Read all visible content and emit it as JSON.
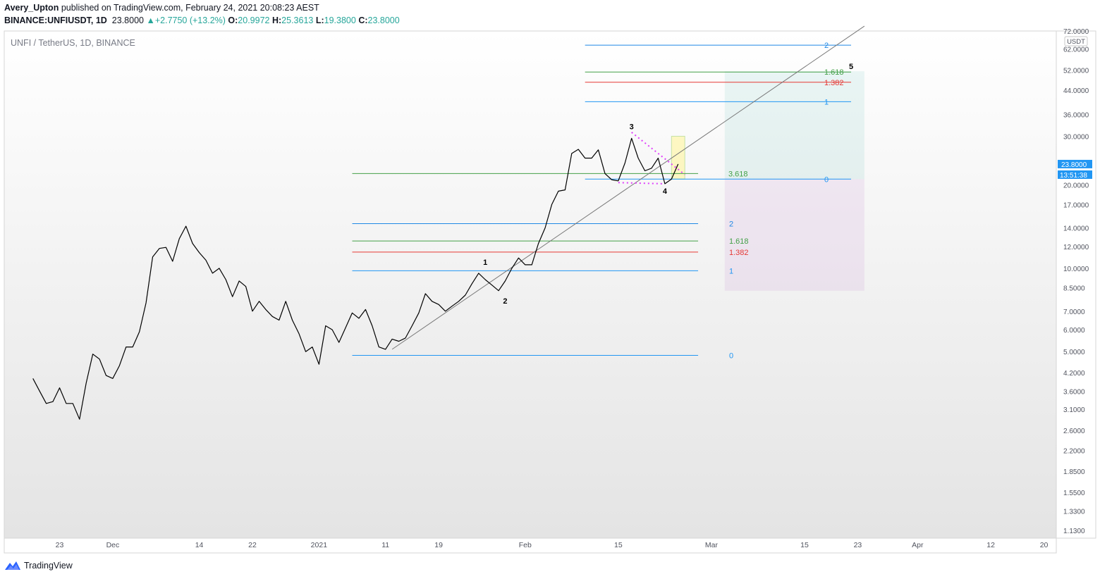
{
  "header": {
    "author": "Avery_Upton",
    "published_text": "published on TradingView.com, February 24, 2021 20:08:23 AEST",
    "symbol_line": "BINANCE:UNFIUSDT, 1D",
    "last_price": "23.8000",
    "change": "+2.7750 (+13.2%)",
    "ohlc": [
      {
        "k": "O:",
        "v": "20.9972"
      },
      {
        "k": "H:",
        "v": "25.3613"
      },
      {
        "k": "L:",
        "v": "19.3800"
      },
      {
        "k": "C:",
        "v": "23.8000"
      }
    ]
  },
  "chart_title": "UNFI / TetherUS, 1D, BINANCE",
  "footer": {
    "brand": "TradingView"
  },
  "chart_data": {
    "type": "line",
    "y_scale": "log",
    "ylim": [
      1.06,
      72
    ],
    "y_currency": "USDT",
    "y_ticks": [
      "72.0000",
      "62.0000",
      "52.0000",
      "44.0000",
      "36.0000",
      "30.0000",
      "20.0000",
      "17.0000",
      "14.0000",
      "12.0000",
      "10.0000",
      "8.5000",
      "7.0000",
      "6.0000",
      "5.0000",
      "4.2000",
      "3.6000",
      "3.1000",
      "2.6000",
      "2.2000",
      "1.8500",
      "1.5500",
      "1.3300",
      "1.1300"
    ],
    "x_ticks": [
      {
        "label": "23",
        "date": "2020-11-23"
      },
      {
        "label": "Dec",
        "date": "2020-12-01"
      },
      {
        "label": "14",
        "date": "2020-12-14"
      },
      {
        "label": "22",
        "date": "2020-12-22"
      },
      {
        "label": "2021",
        "date": "2021-01-01"
      },
      {
        "label": "11",
        "date": "2021-01-11"
      },
      {
        "label": "19",
        "date": "2021-01-19"
      },
      {
        "label": "Feb",
        "date": "2021-02-01"
      },
      {
        "label": "15",
        "date": "2021-02-15"
      },
      {
        "label": "Mar",
        "date": "2021-03-01"
      },
      {
        "label": "15",
        "date": "2021-03-15"
      },
      {
        "label": "23",
        "date": "2021-03-23"
      },
      {
        "label": "Apr",
        "date": "2021-04-01"
      },
      {
        "label": "12",
        "date": "2021-04-12"
      },
      {
        "label": "20",
        "date": "2021-04-20"
      }
    ],
    "xlim": [
      "2020-11-15",
      "2021-04-21"
    ],
    "series": [
      {
        "color": "#000000",
        "x": [
          "2020-11-19",
          "2020-11-20",
          "2020-11-21",
          "2020-11-22",
          "2020-11-23",
          "2020-11-24",
          "2020-11-25",
          "2020-11-26",
          "2020-11-27",
          "2020-11-28",
          "2020-11-29",
          "2020-11-30",
          "2020-12-01",
          "2020-12-02",
          "2020-12-03",
          "2020-12-04",
          "2020-12-05",
          "2020-12-06",
          "2020-12-07",
          "2020-12-08",
          "2020-12-09",
          "2020-12-10",
          "2020-12-11",
          "2020-12-12",
          "2020-12-13",
          "2020-12-14",
          "2020-12-15",
          "2020-12-16",
          "2020-12-17",
          "2020-12-18",
          "2020-12-19",
          "2020-12-20",
          "2020-12-21",
          "2020-12-22",
          "2020-12-23",
          "2020-12-24",
          "2020-12-25",
          "2020-12-26",
          "2020-12-27",
          "2020-12-28",
          "2020-12-29",
          "2020-12-30",
          "2020-12-31",
          "2021-01-01",
          "2021-01-02",
          "2021-01-03",
          "2021-01-04",
          "2021-01-05",
          "2021-01-06",
          "2021-01-07",
          "2021-01-08",
          "2021-01-09",
          "2021-01-10",
          "2021-01-11",
          "2021-01-12",
          "2021-01-13",
          "2021-01-14",
          "2021-01-15",
          "2021-01-16",
          "2021-01-17",
          "2021-01-18",
          "2021-01-19",
          "2021-01-20",
          "2021-01-21",
          "2021-01-22",
          "2021-01-23",
          "2021-01-24",
          "2021-01-25",
          "2021-01-26",
          "2021-01-27",
          "2021-01-28",
          "2021-01-29",
          "2021-01-30",
          "2021-01-31",
          "2021-02-01",
          "2021-02-02",
          "2021-02-03",
          "2021-02-04",
          "2021-02-05",
          "2021-02-06",
          "2021-02-07",
          "2021-02-08",
          "2021-02-09",
          "2021-02-10",
          "2021-02-11",
          "2021-02-12",
          "2021-02-13",
          "2021-02-14",
          "2021-02-15",
          "2021-02-16",
          "2021-02-17",
          "2021-02-18",
          "2021-02-19",
          "2021-02-20",
          "2021-02-21",
          "2021-02-22",
          "2021-02-23",
          "2021-02-24"
        ],
        "y": [
          4.0,
          3.6,
          3.25,
          3.3,
          3.7,
          3.25,
          3.25,
          2.85,
          3.85,
          4.9,
          4.7,
          4.1,
          4.0,
          4.45,
          5.2,
          5.2,
          5.9,
          7.5,
          11.0,
          11.8,
          11.9,
          10.6,
          12.8,
          14.2,
          12.3,
          11.4,
          10.7,
          9.6,
          10.0,
          9.1,
          7.9,
          9.0,
          8.6,
          7.0,
          7.6,
          7.1,
          6.7,
          6.5,
          7.6,
          6.5,
          5.8,
          5.0,
          5.2,
          4.5,
          6.2,
          6.0,
          5.4,
          6.1,
          6.9,
          6.6,
          7.1,
          6.2,
          5.2,
          5.1,
          5.55,
          5.45,
          5.6,
          6.2,
          6.9,
          8.1,
          7.6,
          7.4,
          7.0,
          7.3,
          7.6,
          8.0,
          8.8,
          9.6,
          9.1,
          8.7,
          8.3,
          9.0,
          10.0,
          10.9,
          10.3,
          10.3,
          12.3,
          14.0,
          17.0,
          19.0,
          19.2,
          26.0,
          26.9,
          25.0,
          25.0,
          26.8,
          22.0,
          20.9,
          20.7,
          24.0,
          29.5,
          25.0,
          22.5,
          23.0,
          25.0,
          20.2,
          21.0,
          23.8
        ]
      }
    ],
    "last_value_label": "23.8000",
    "countdown_label": "13:51:38",
    "annotations": {
      "waves": [
        {
          "label": "1",
          "date": "2021-01-26",
          "price": 10.3
        },
        {
          "label": "2",
          "date": "2021-01-29",
          "price": 7.45
        },
        {
          "label": "3",
          "date": "2021-02-17",
          "price": 31.8
        },
        {
          "label": "4",
          "date": "2021-02-22",
          "price": 18.6
        },
        {
          "label": "5",
          "date": "2021-03-22",
          "price": 52.5
        }
      ],
      "fib_lower": [
        {
          "label": "2",
          "price": 14.5,
          "color": "#1e88e5"
        },
        {
          "label": "1.618",
          "price": 12.55,
          "color": "#43a047"
        },
        {
          "label": "1.382",
          "price": 11.45,
          "color": "#e53935"
        },
        {
          "label": "1",
          "price": 9.8,
          "color": "#2196f3"
        },
        {
          "label": "0",
          "price": 4.85,
          "color": "#2196f3"
        }
      ],
      "fib_upper": [
        {
          "label": "2",
          "price": 64.0,
          "color": "#1e88e5"
        },
        {
          "label": "1.618",
          "price": 51.2,
          "color": "#43a047"
        },
        {
          "label": "1.382",
          "price": 47.0,
          "color": "#e53935"
        },
        {
          "label": "1",
          "price": 40.0,
          "color": "#2196f3"
        },
        {
          "label": "0",
          "price": 21.0,
          "color": "#2196f3"
        }
      ],
      "extension": {
        "label": "3.618",
        "price": 22.0,
        "color": "#43a047"
      },
      "trendline": {
        "from": {
          "date": "2021-01-12",
          "price": 5.1
        },
        "to": {
          "date": "2021-03-24",
          "price": 75.0
        }
      },
      "target_zone": {
        "x1": "2021-03-03",
        "x2": "2021-03-24",
        "top": 51.5,
        "mid": 21.0,
        "bottom": 8.3
      },
      "highlight_box": {
        "x1": "2021-02-23",
        "x2": "2021-02-25",
        "top": 30.0,
        "bottom": 21.0
      }
    }
  }
}
